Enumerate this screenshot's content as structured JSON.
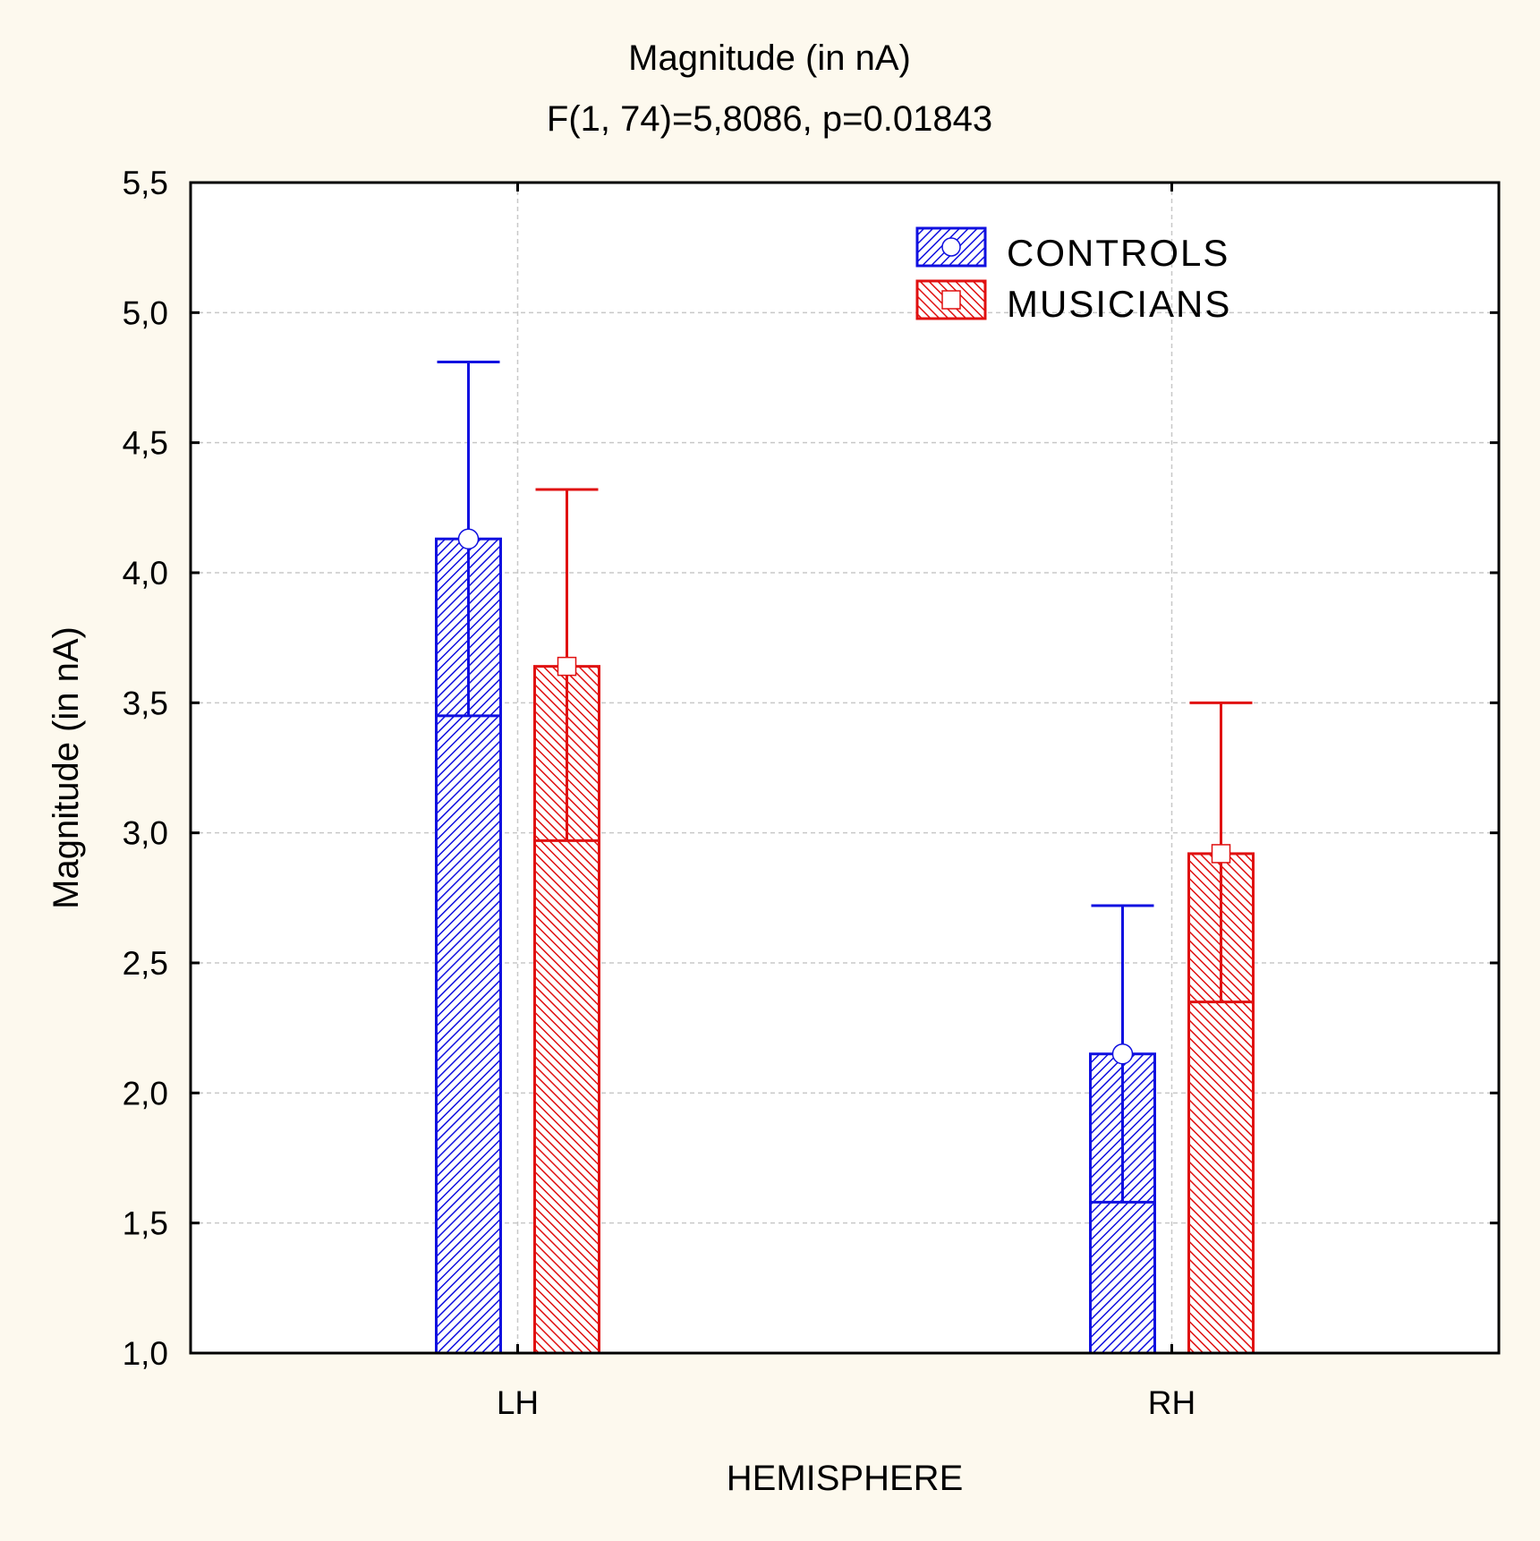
{
  "chart_data": {
    "type": "bar",
    "title": "Magnitude (in nA)",
    "subtitle": "F(1, 74)=5,8086, p=0.01843",
    "xlabel": "HEMISPHERE",
    "ylabel": "Magnitude (in nA)",
    "ylim": [
      1.0,
      5.5
    ],
    "yticks": [
      1.0,
      1.5,
      2.0,
      2.5,
      3.0,
      3.5,
      4.0,
      4.5,
      5.0,
      5.5
    ],
    "ytick_labels": [
      "1,0",
      "1,5",
      "2,0",
      "2,5",
      "3,0",
      "3,5",
      "4,0",
      "4,5",
      "5,0",
      "5,5"
    ],
    "categories": [
      "LH",
      "RH"
    ],
    "grid": true,
    "legend_position": "top-right",
    "series": [
      {
        "name": "CONTROLS",
        "color": "#1010e0",
        "marker": "circle",
        "values": [
          4.13,
          2.15
        ],
        "ci_upper": [
          4.81,
          2.72
        ],
        "ci_lower": [
          3.45,
          1.58
        ]
      },
      {
        "name": "MUSICIANS",
        "color": "#e01010",
        "marker": "square",
        "values": [
          3.64,
          2.92
        ],
        "ci_upper": [
          4.32,
          3.5
        ],
        "ci_lower": [
          2.97,
          2.35
        ]
      }
    ]
  }
}
